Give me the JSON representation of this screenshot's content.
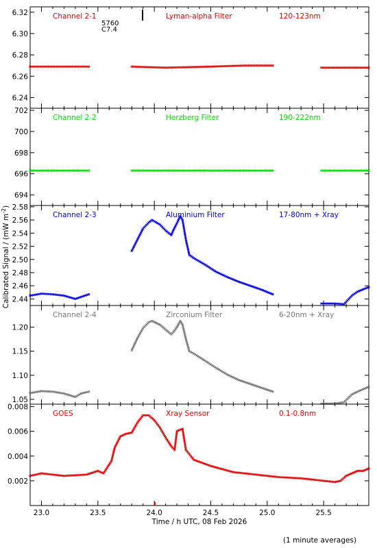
{
  "chart_data": {
    "type": "scatter",
    "xlabel": "Time / h UTC, 08 Feb 2026",
    "ylabel": "Calibrated Signal / (mW m",
    "ylabel_sup": "-2",
    "ylabel_close": ")",
    "xlim": [
      22.9,
      25.9
    ],
    "xticks": [
      23.0,
      23.5,
      24.0,
      24.5,
      25.0,
      25.5
    ],
    "xtick_labels": [
      "23.0",
      "23.5",
      "24.0",
      "24.5",
      "25.0",
      "25.5"
    ],
    "footnote": "(1 minute averages)",
    "event_marker": {
      "label1": "5760",
      "label2": "C7.4"
    },
    "panels": [
      {
        "name": "Channel 2-1",
        "filter": "Lyman-alpha Filter",
        "range": "120-123nm",
        "color": "#e00000",
        "ylim": [
          6.23,
          6.325
        ],
        "yticks": [
          6.24,
          6.26,
          6.28,
          6.3,
          6.32
        ],
        "ytick_labels": [
          "6.24",
          "6.26",
          "6.28",
          "6.30",
          "6.32"
        ],
        "segments": [
          {
            "x": [
              22.9,
              23.42
            ],
            "y": [
              6.269,
              6.269
            ]
          },
          {
            "x": [
              23.8,
              24.1,
              24.5,
              24.8,
              25.05
            ],
            "y": [
              6.269,
              6.268,
              6.269,
              6.27,
              6.27
            ]
          },
          {
            "x": [
              25.48,
              25.9
            ],
            "y": [
              6.268,
              6.268
            ]
          }
        ]
      },
      {
        "name": "Channel 2-2",
        "filter": "Herzberg Filter",
        "range": "190-222nm",
        "color": "#00dd00",
        "ylim": [
          693,
          702.2
        ],
        "yticks": [
          694,
          696,
          698,
          700,
          702
        ],
        "ytick_labels": [
          "694",
          "696",
          "698",
          "700",
          "702"
        ],
        "segments": [
          {
            "x": [
              22.9,
              23.42
            ],
            "y": [
              696.3,
              696.3
            ]
          },
          {
            "x": [
              23.8,
              25.05
            ],
            "y": [
              696.3,
              696.3
            ]
          },
          {
            "x": [
              25.48,
              25.9
            ],
            "y": [
              696.3,
              696.3
            ]
          }
        ]
      },
      {
        "name": "Channel 2-3",
        "filter": "Aluminium Filter",
        "range": "17-80nm + Xray",
        "color": "#0000dd",
        "ylim": [
          2.43,
          2.582
        ],
        "yticks": [
          2.44,
          2.46,
          2.48,
          2.5,
          2.52,
          2.54,
          2.56,
          2.58
        ],
        "ytick_labels": [
          "2.44",
          "2.46",
          "2.48",
          "2.50",
          "2.52",
          "2.54",
          "2.56",
          "2.58"
        ],
        "segments": [
          {
            "x": [
              22.9,
              23.0,
              23.1,
              23.2,
              23.3,
              23.35,
              23.42
            ],
            "y": [
              2.445,
              2.448,
              2.447,
              2.445,
              2.44,
              2.443,
              2.447
            ]
          },
          {
            "x": [
              23.8,
              23.85,
              23.9,
              23.95,
              23.98,
              24.05,
              24.1,
              24.15,
              24.17,
              24.2,
              24.23,
              24.25,
              24.28,
              24.31,
              24.35,
              24.45,
              24.55,
              24.65,
              24.75,
              24.85,
              24.95,
              25.05
            ],
            "y": [
              2.513,
              2.53,
              2.547,
              2.556,
              2.56,
              2.553,
              2.544,
              2.537,
              2.545,
              2.555,
              2.566,
              2.56,
              2.53,
              2.507,
              2.502,
              2.492,
              2.481,
              2.473,
              2.466,
              2.46,
              2.454,
              2.447
            ]
          },
          {
            "x": [
              25.48,
              25.6,
              25.68,
              25.75,
              25.8,
              25.9
            ],
            "y": [
              2.433,
              2.433,
              2.432,
              2.445,
              2.451,
              2.458
            ]
          }
        ]
      },
      {
        "name": "Channel 2-4",
        "filter": "Zirconium Filter",
        "range": "6-20nm + Xray",
        "color": "#777777",
        "ylim": [
          1.04,
          1.245
        ],
        "yticks": [
          1.05,
          1.1,
          1.15,
          1.2
        ],
        "ytick_labels": [
          "1.05",
          "1.10",
          "1.15",
          "1.20"
        ],
        "segments": [
          {
            "x": [
              22.9,
              23.0,
              23.1,
              23.2,
              23.3,
              23.35,
              23.42
            ],
            "y": [
              1.063,
              1.067,
              1.066,
              1.062,
              1.055,
              1.062,
              1.066
            ]
          },
          {
            "x": [
              23.8,
              23.85,
              23.9,
              23.95,
              23.98,
              24.05,
              24.1,
              24.15,
              24.17,
              24.2,
              24.23,
              24.25,
              24.28,
              24.31,
              24.35,
              24.45,
              24.55,
              24.65,
              24.75,
              24.85,
              24.95,
              25.05
            ],
            "y": [
              1.152,
              1.177,
              1.198,
              1.21,
              1.213,
              1.205,
              1.195,
              1.185,
              1.19,
              1.2,
              1.213,
              1.205,
              1.175,
              1.15,
              1.145,
              1.13,
              1.115,
              1.101,
              1.09,
              1.082,
              1.074,
              1.066
            ]
          },
          {
            "x": [
              25.48,
              25.6,
              25.68,
              25.75,
              25.8,
              25.9
            ],
            "y": [
              1.041,
              1.041,
              1.044,
              1.06,
              1.066,
              1.076
            ]
          }
        ]
      },
      {
        "name": "GOES",
        "filter": "Xray Sensor",
        "range": "0.1-0.8nm",
        "color": "#e00000",
        "ylim": [
          0.0,
          0.0082
        ],
        "yticks": [
          0.002,
          0.004,
          0.006,
          0.008
        ],
        "ytick_labels": [
          "0.002",
          "0.004",
          "0.006",
          "0.008"
        ],
        "segments": [
          {
            "x": [
              22.9,
              23.0,
              23.2,
              23.4,
              23.5,
              23.55,
              23.62,
              23.65,
              23.7,
              23.75,
              23.8,
              23.85,
              23.9,
              23.95,
              24.0,
              24.05,
              24.1,
              24.15,
              24.18,
              24.2,
              24.22,
              24.25,
              24.28,
              24.35,
              24.5,
              24.7,
              24.9,
              25.1,
              25.3,
              25.5,
              25.6,
              25.65,
              25.7,
              25.8,
              25.85,
              25.9
            ],
            "y": [
              0.0024,
              0.0026,
              0.0024,
              0.0025,
              0.0028,
              0.0026,
              0.0036,
              0.0047,
              0.0056,
              0.0058,
              0.0059,
              0.0067,
              0.0073,
              0.0073,
              0.0069,
              0.0063,
              0.0055,
              0.0048,
              0.0045,
              0.006,
              0.0061,
              0.0062,
              0.0045,
              0.0037,
              0.0032,
              0.0027,
              0.0025,
              0.0023,
              0.0022,
              0.002,
              0.0019,
              0.002,
              0.0024,
              0.0028,
              0.0028,
              0.003
            ]
          }
        ]
      }
    ]
  }
}
